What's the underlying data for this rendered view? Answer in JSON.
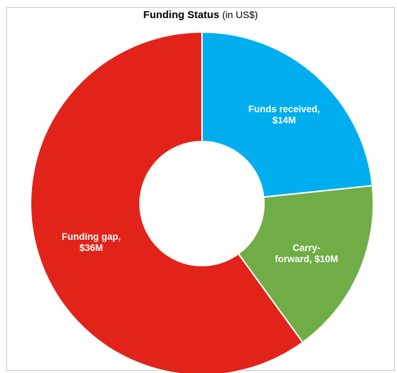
{
  "chart_data": {
    "type": "pie",
    "title": "Funding Status",
    "subtitle": "(in US$)",
    "slices": [
      {
        "label_lines": [
          "Funds  received,",
          "$14M"
        ],
        "value": 14,
        "color": "#00aeef"
      },
      {
        "label_lines": [
          "Carry-",
          "forward, $10M"
        ],
        "value": 10,
        "color": "#70ad47"
      },
      {
        "label_lines": [
          "Funding gap,",
          "$36M"
        ],
        "value": 36,
        "color": "#e2231a"
      }
    ]
  }
}
